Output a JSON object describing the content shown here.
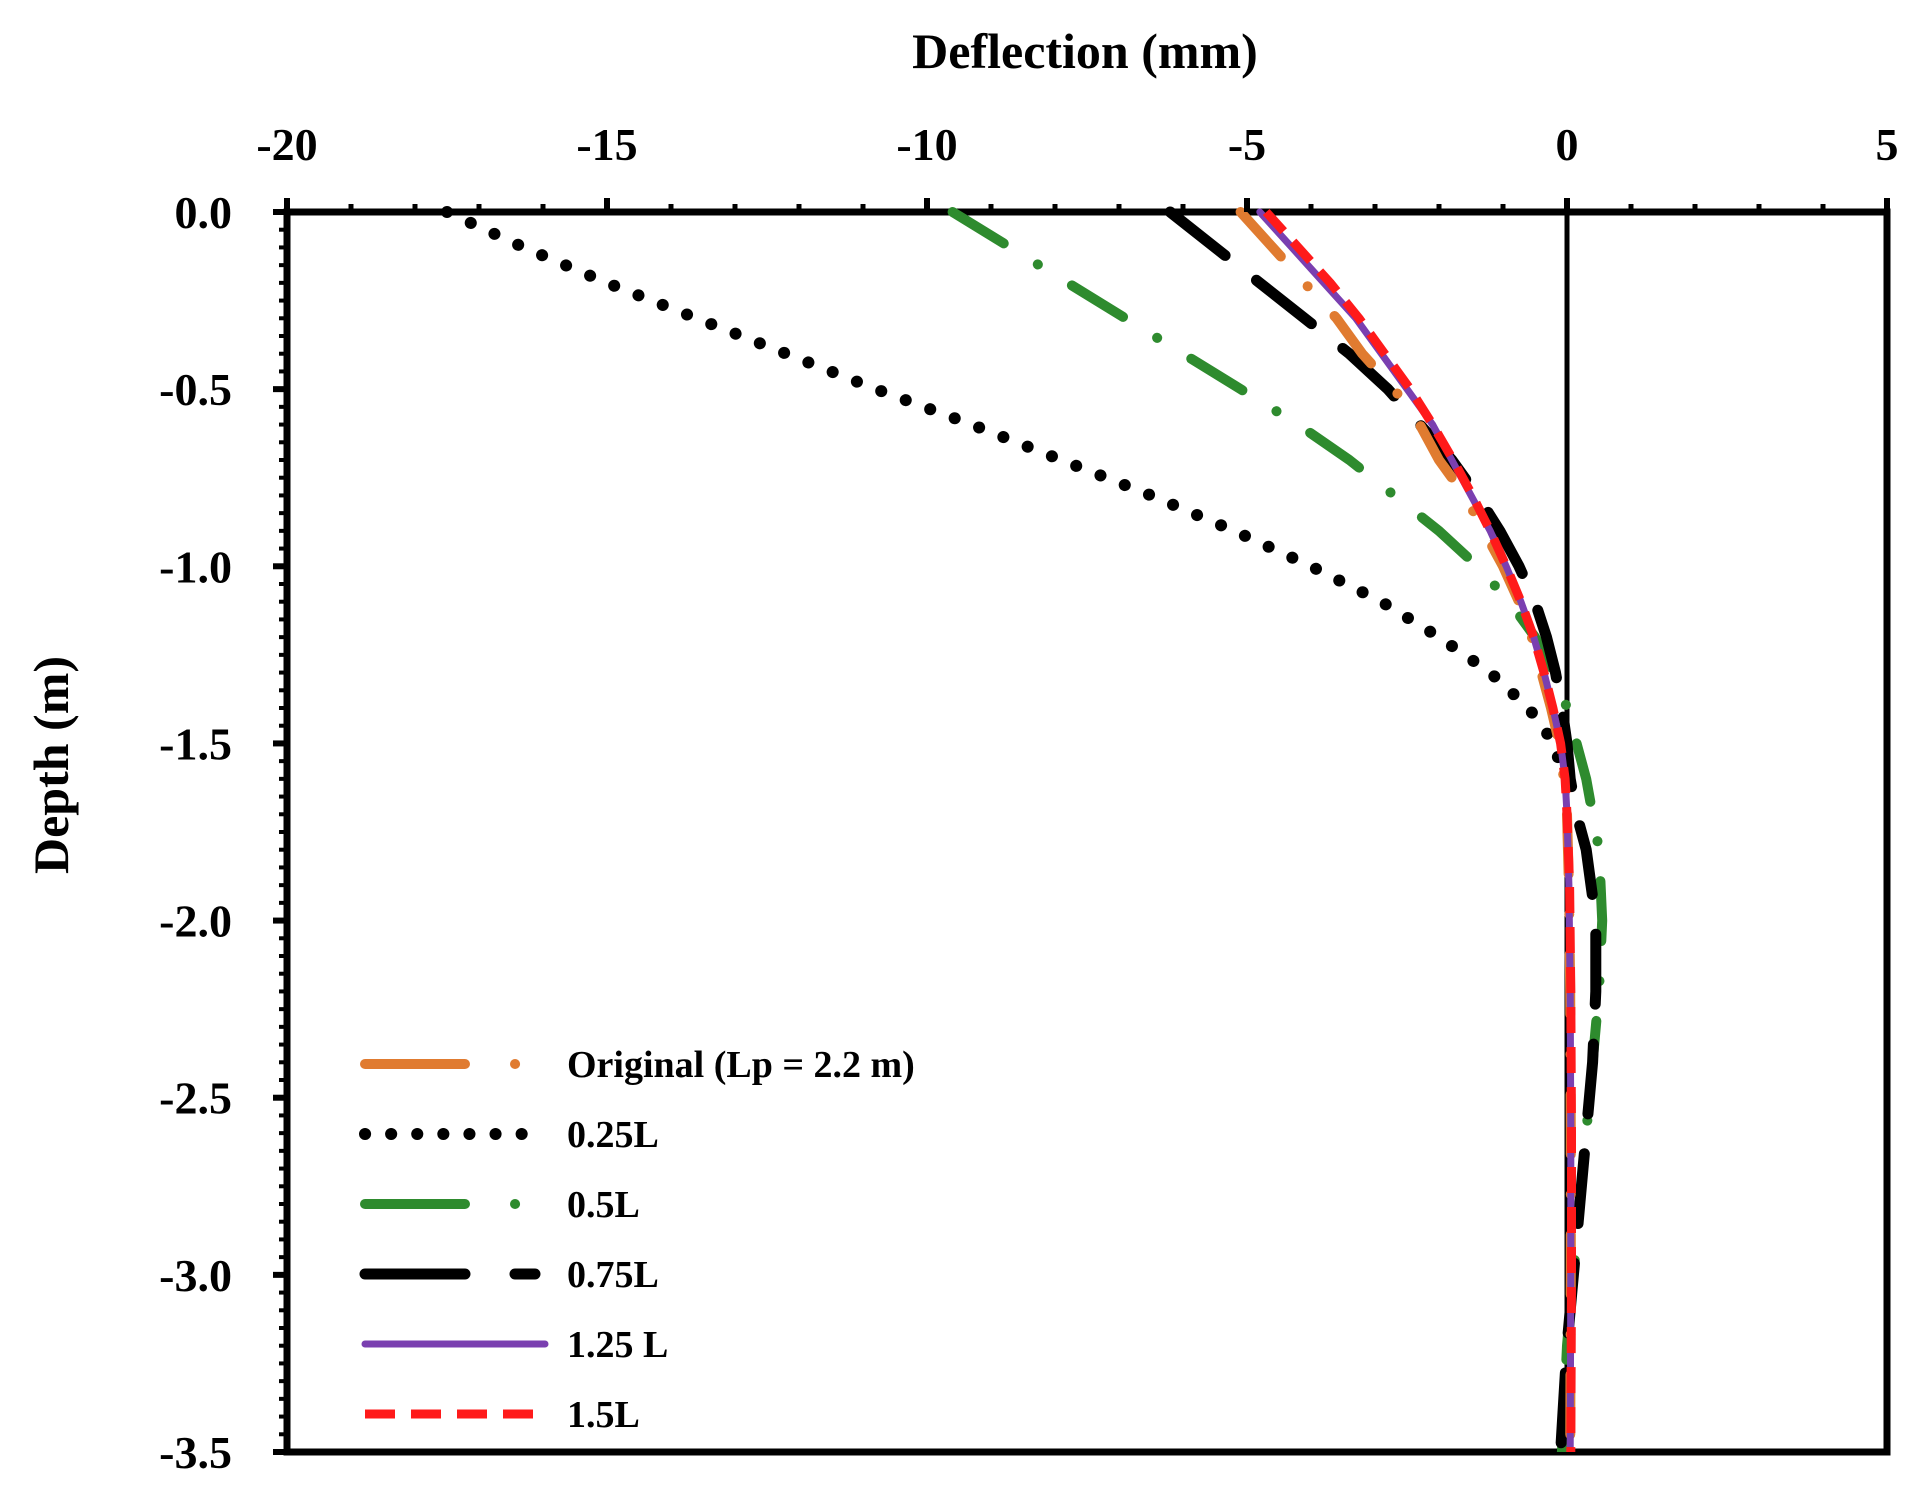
{
  "chart_data": {
    "type": "line",
    "xlabel": "Deflection (mm)",
    "ylabel": "Depth (m)",
    "xlim": [
      -20,
      5
    ],
    "ylim": [
      -3.5,
      0.0
    ],
    "x_ticks": [
      -20,
      -15,
      -10,
      -5,
      0,
      5
    ],
    "x_tick_labels": [
      "-20",
      "-15",
      "-10",
      "-5",
      "0",
      "5"
    ],
    "y_ticks": [
      0.0,
      -0.5,
      -1.0,
      -1.5,
      -2.0,
      -2.5,
      -3.0,
      -3.5
    ],
    "y_tick_labels": [
      "0.0",
      "-0.5",
      "-1.0",
      "-1.5",
      "-2.0",
      "-2.5",
      "-3.0",
      "-3.5"
    ],
    "x_axis_position": "top",
    "legend_position": "bottom-left",
    "series": [
      {
        "name": "Original (Lp = 2.2 m)",
        "color": "#e07b30",
        "style": "dash-dot",
        "points": [
          [
            -5.1,
            0.0
          ],
          [
            -4.6,
            -0.1
          ],
          [
            -4.1,
            -0.2
          ],
          [
            -3.6,
            -0.3
          ],
          [
            -3.2,
            -0.4
          ],
          [
            -2.7,
            -0.5
          ],
          [
            -2.3,
            -0.6
          ],
          [
            -2.0,
            -0.7
          ],
          [
            -1.6,
            -0.8
          ],
          [
            -1.3,
            -0.9
          ],
          [
            -1.0,
            -1.0
          ],
          [
            -0.75,
            -1.1
          ],
          [
            -0.55,
            -1.2
          ],
          [
            -0.4,
            -1.3
          ],
          [
            -0.25,
            -1.4
          ],
          [
            -0.12,
            -1.5
          ],
          [
            -0.05,
            -1.6
          ],
          [
            0.0,
            -1.7
          ],
          [
            0.03,
            -1.9
          ],
          [
            0.05,
            -2.2
          ],
          [
            0.06,
            -2.6
          ],
          [
            0.06,
            -3.0
          ],
          [
            0.05,
            -3.5
          ]
        ]
      },
      {
        "name": "0.25L",
        "color": "#000000",
        "style": "dotted",
        "points": [
          [
            -17.5,
            0.0
          ],
          [
            -16.3,
            -0.1
          ],
          [
            -15.0,
            -0.2
          ],
          [
            -13.6,
            -0.3
          ],
          [
            -12.2,
            -0.4
          ],
          [
            -10.8,
            -0.5
          ],
          [
            -9.3,
            -0.6
          ],
          [
            -7.9,
            -0.7
          ],
          [
            -6.5,
            -0.8
          ],
          [
            -5.2,
            -0.9
          ],
          [
            -4.0,
            -1.0
          ],
          [
            -2.9,
            -1.1
          ],
          [
            -2.0,
            -1.2
          ],
          [
            -1.2,
            -1.3
          ],
          [
            -0.6,
            -1.4
          ],
          [
            -0.2,
            -1.5
          ],
          [
            -0.05,
            -1.6
          ]
        ]
      },
      {
        "name": "0.5L",
        "color": "#2e8b2e",
        "style": "dash-dot",
        "points": [
          [
            -9.6,
            0.0
          ],
          [
            -8.7,
            -0.1
          ],
          [
            -7.8,
            -0.2
          ],
          [
            -6.9,
            -0.3
          ],
          [
            -6.0,
            -0.4
          ],
          [
            -5.1,
            -0.5
          ],
          [
            -4.2,
            -0.6
          ],
          [
            -3.4,
            -0.7
          ],
          [
            -2.7,
            -0.8
          ],
          [
            -2.0,
            -0.9
          ],
          [
            -1.4,
            -1.0
          ],
          [
            -0.9,
            -1.1
          ],
          [
            -0.5,
            -1.2
          ],
          [
            -0.2,
            -1.3
          ],
          [
            0.0,
            -1.4
          ],
          [
            0.15,
            -1.5
          ],
          [
            0.3,
            -1.6
          ],
          [
            0.4,
            -1.7
          ],
          [
            0.5,
            -1.8
          ],
          [
            0.55,
            -2.0
          ],
          [
            0.5,
            -2.2
          ],
          [
            0.4,
            -2.4
          ],
          [
            0.3,
            -2.6
          ],
          [
            0.2,
            -2.8
          ],
          [
            0.1,
            -3.0
          ],
          [
            0.0,
            -3.2
          ],
          [
            -0.05,
            -3.4
          ],
          [
            -0.08,
            -3.5
          ]
        ]
      },
      {
        "name": "0.75L",
        "color": "#000000",
        "style": "long-dash",
        "points": [
          [
            -6.2,
            0.0
          ],
          [
            -5.5,
            -0.1
          ],
          [
            -4.8,
            -0.2
          ],
          [
            -4.1,
            -0.3
          ],
          [
            -3.4,
            -0.4
          ],
          [
            -2.8,
            -0.5
          ],
          [
            -2.3,
            -0.6
          ],
          [
            -1.8,
            -0.7
          ],
          [
            -1.4,
            -0.8
          ],
          [
            -1.05,
            -0.9
          ],
          [
            -0.75,
            -1.0
          ],
          [
            -0.5,
            -1.1
          ],
          [
            -0.32,
            -1.2
          ],
          [
            -0.18,
            -1.3
          ],
          [
            -0.08,
            -1.4
          ],
          [
            0.0,
            -1.5
          ],
          [
            0.05,
            -1.6
          ],
          [
            0.15,
            -1.7
          ],
          [
            0.3,
            -1.8
          ],
          [
            0.45,
            -2.0
          ],
          [
            0.45,
            -2.2
          ],
          [
            0.4,
            -2.4
          ],
          [
            0.3,
            -2.6
          ],
          [
            0.2,
            -2.8
          ],
          [
            0.1,
            -3.0
          ],
          [
            0.0,
            -3.2
          ],
          [
            -0.1,
            -3.5
          ]
        ]
      },
      {
        "name": "1.25 L",
        "color": "#7a3fb0",
        "style": "solid",
        "points": [
          [
            -4.8,
            0.0
          ],
          [
            -4.3,
            -0.1
          ],
          [
            -3.8,
            -0.2
          ],
          [
            -3.3,
            -0.3
          ],
          [
            -2.9,
            -0.4
          ],
          [
            -2.5,
            -0.5
          ],
          [
            -2.1,
            -0.6
          ],
          [
            -1.8,
            -0.7
          ],
          [
            -1.5,
            -0.8
          ],
          [
            -1.2,
            -0.9
          ],
          [
            -0.95,
            -1.0
          ],
          [
            -0.72,
            -1.1
          ],
          [
            -0.52,
            -1.2
          ],
          [
            -0.36,
            -1.3
          ],
          [
            -0.22,
            -1.4
          ],
          [
            -0.1,
            -1.5
          ],
          [
            -0.03,
            -1.6
          ],
          [
            0.0,
            -1.7
          ],
          [
            0.03,
            -1.9
          ],
          [
            0.05,
            -2.2
          ],
          [
            0.06,
            -2.6
          ],
          [
            0.06,
            -3.0
          ],
          [
            0.05,
            -3.5
          ]
        ]
      },
      {
        "name": "1.5L",
        "color": "#ff1a1a",
        "style": "dashed",
        "points": [
          [
            -4.7,
            0.0
          ],
          [
            -4.2,
            -0.1
          ],
          [
            -3.7,
            -0.2
          ],
          [
            -3.25,
            -0.3
          ],
          [
            -2.85,
            -0.4
          ],
          [
            -2.45,
            -0.5
          ],
          [
            -2.1,
            -0.6
          ],
          [
            -1.78,
            -0.7
          ],
          [
            -1.48,
            -0.8
          ],
          [
            -1.2,
            -0.9
          ],
          [
            -0.95,
            -1.0
          ],
          [
            -0.72,
            -1.1
          ],
          [
            -0.52,
            -1.2
          ],
          [
            -0.36,
            -1.3
          ],
          [
            -0.22,
            -1.4
          ],
          [
            -0.1,
            -1.5
          ],
          [
            -0.03,
            -1.6
          ],
          [
            0.0,
            -1.7
          ],
          [
            0.04,
            -1.9
          ],
          [
            0.06,
            -2.2
          ],
          [
            0.07,
            -2.6
          ],
          [
            0.07,
            -3.0
          ],
          [
            0.06,
            -3.5
          ]
        ]
      }
    ]
  }
}
